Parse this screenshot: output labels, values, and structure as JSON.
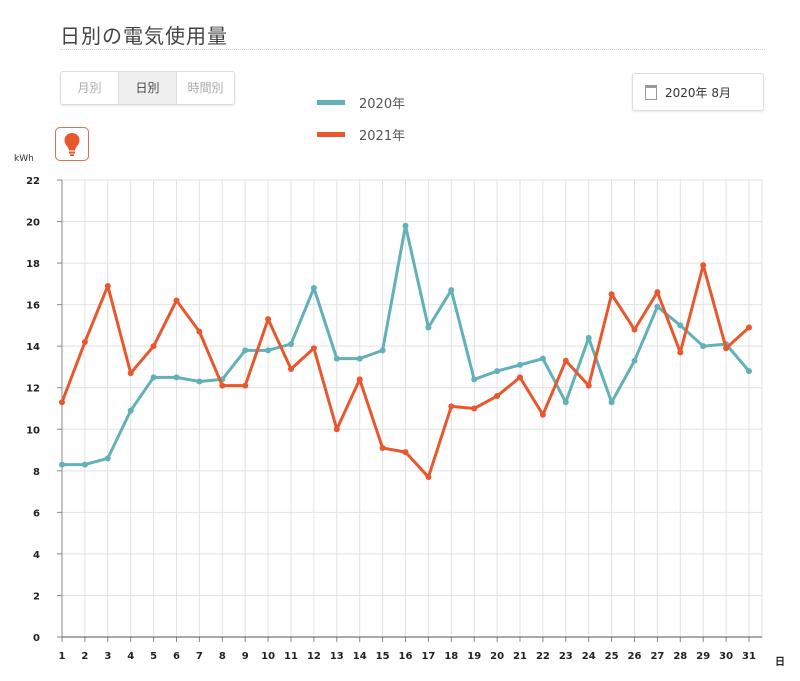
{
  "header": {
    "title": "日別の電気使用量"
  },
  "tabs": [
    {
      "label": "月別",
      "active": false
    },
    {
      "label": "日別",
      "active": true
    },
    {
      "label": "時間別",
      "active": false
    }
  ],
  "date_picker": {
    "value": "2020年 8月",
    "icon": "calendar-icon"
  },
  "mode_icon": "lightbulb-icon",
  "colors": {
    "series2020": "#62b0b8",
    "series2021": "#e8572e",
    "accent": "#e0714f"
  },
  "chart_data": {
    "type": "line",
    "ylabel": "kWh",
    "xlabel": "日",
    "ylim": [
      0,
      22
    ],
    "yticks": [
      "0",
      "2",
      "4",
      "6",
      "8",
      "10",
      "12",
      "14",
      "16",
      "18",
      "20",
      "22"
    ],
    "x": [
      "1",
      "2",
      "3",
      "4",
      "5",
      "6",
      "7",
      "8",
      "9",
      "10",
      "11",
      "12",
      "13",
      "14",
      "15",
      "16",
      "17",
      "18",
      "19",
      "20",
      "21",
      "22",
      "23",
      "24",
      "25",
      "26",
      "27",
      "28",
      "29",
      "30",
      "31"
    ],
    "grid": true,
    "legend_placement": "top-center",
    "series": [
      {
        "name": "2020年",
        "color": "#62b0b8",
        "values": [
          8.3,
          8.3,
          8.6,
          10.9,
          12.5,
          12.5,
          12.3,
          12.4,
          13.8,
          13.8,
          14.1,
          16.8,
          13.4,
          13.4,
          13.8,
          19.8,
          14.9,
          16.7,
          12.4,
          12.8,
          13.1,
          13.4,
          11.3,
          14.4,
          11.3,
          13.3,
          15.9,
          15.0,
          14.0,
          14.1,
          12.8
        ]
      },
      {
        "name": "2021年",
        "color": "#e8572e",
        "values": [
          11.3,
          14.2,
          16.9,
          12.7,
          14.0,
          16.2,
          14.7,
          12.1,
          12.1,
          15.3,
          12.9,
          13.9,
          10.0,
          12.4,
          9.1,
          8.9,
          7.7,
          11.1,
          11.0,
          11.6,
          12.5,
          10.7,
          13.3,
          12.1,
          16.5,
          14.8,
          16.6,
          13.7,
          17.9,
          13.9,
          14.9
        ]
      }
    ]
  }
}
